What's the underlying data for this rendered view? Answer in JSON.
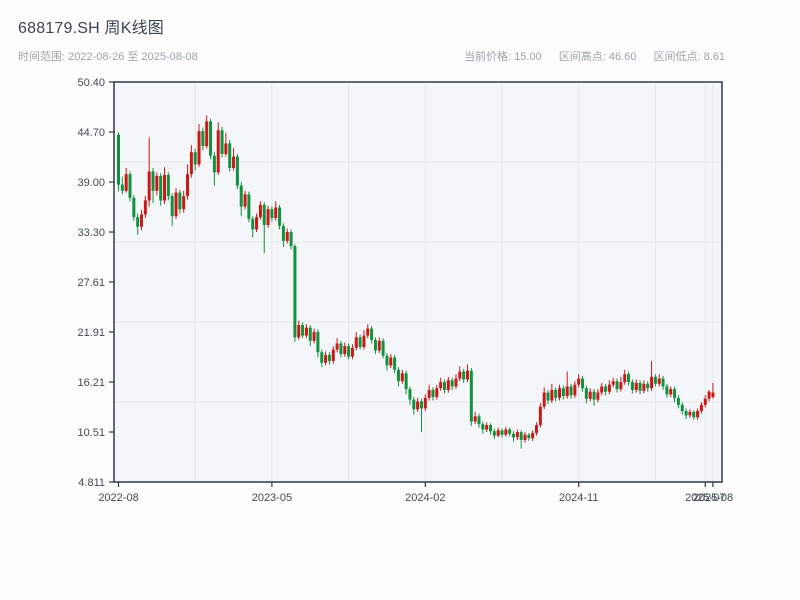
{
  "header": {
    "title": "688179.SH 周K线图",
    "subtitle": "时间范围: 2022-08-26 至 2025-08-08",
    "stats": {
      "price": "当前价格: 15.00",
      "high": "区间高点: 46.60",
      "low": "区间低点: 8.61"
    }
  },
  "chart_data": {
    "type": "candlestick",
    "symbol": "688179.SH",
    "period": "weekly",
    "title": "688179.SH 周K线图",
    "date_range": {
      "start": "2022-08-26",
      "end": "2025-08-08"
    },
    "current_price": 15.0,
    "range_high": 46.6,
    "range_low": 8.61,
    "ylim": [
      4.811,
      50.4
    ],
    "y_ticks": [
      "50.40",
      "44.70",
      "39.00",
      "33.30",
      "27.61",
      "21.91",
      "16.21",
      "10.51",
      "4.811"
    ],
    "y_tick_values": [
      50.4,
      44.7,
      39.0,
      33.3,
      27.61,
      21.91,
      16.21,
      10.51,
      4.811
    ],
    "x_ticks": [
      {
        "index": 0,
        "label": "2022-08"
      },
      {
        "index": 40,
        "label": "2023-05"
      },
      {
        "index": 80,
        "label": "2024-02"
      },
      {
        "index": 120,
        "label": "2024-11"
      },
      {
        "index": 153,
        "label": "2025-07"
      },
      {
        "index": 155,
        "label": "2025-08"
      }
    ],
    "grid": {
      "v_indices": [
        20,
        40,
        60,
        80,
        100,
        120,
        140,
        153,
        155
      ],
      "h_divisions": 5
    },
    "colors": {
      "up": "#cc1717",
      "down": "#12913e",
      "plot_bg": "#f4f6f9",
      "grid": "#e4e7ea",
      "spine": "#2b3a4a",
      "axis_text": "#3e4a5a"
    },
    "candles": [
      [
        44.4,
        44.65,
        37.9,
        38.7
      ],
      [
        38.7,
        39.6,
        37.6,
        38.0
      ],
      [
        38.0,
        40.6,
        37.8,
        39.9
      ],
      [
        39.9,
        40.2,
        36.8,
        37.2
      ],
      [
        37.2,
        37.5,
        34.6,
        35.0
      ],
      [
        35.0,
        35.4,
        33.0,
        33.9
      ],
      [
        33.9,
        35.8,
        33.5,
        35.3
      ],
      [
        35.3,
        37.4,
        34.9,
        36.9
      ],
      [
        36.9,
        44.1,
        36.2,
        40.2
      ],
      [
        40.2,
        40.6,
        36.6,
        38.0
      ],
      [
        38.0,
        40.1,
        37.5,
        39.7
      ],
      [
        39.7,
        40.0,
        36.3,
        36.9
      ],
      [
        36.9,
        40.7,
        36.5,
        39.8
      ],
      [
        39.8,
        40.1,
        36.9,
        37.4
      ],
      [
        37.4,
        37.7,
        34.0,
        35.1
      ],
      [
        35.1,
        38.3,
        34.8,
        37.8
      ],
      [
        37.8,
        38.1,
        35.4,
        35.9
      ],
      [
        35.9,
        38.0,
        35.5,
        37.4
      ],
      [
        37.4,
        41.0,
        37.0,
        39.9
      ],
      [
        39.9,
        43.2,
        39.5,
        42.4
      ],
      [
        42.4,
        42.8,
        40.3,
        41.0
      ],
      [
        41.0,
        45.6,
        40.7,
        44.8
      ],
      [
        44.8,
        45.2,
        42.6,
        43.1
      ],
      [
        43.1,
        46.6,
        42.8,
        45.9
      ],
      [
        45.9,
        46.2,
        41.6,
        42.0
      ],
      [
        42.0,
        42.4,
        38.6,
        40.1
      ],
      [
        40.1,
        45.8,
        39.8,
        44.9
      ],
      [
        44.9,
        45.3,
        41.8,
        42.2
      ],
      [
        42.2,
        44.6,
        41.9,
        43.4
      ],
      [
        43.4,
        43.8,
        40.2,
        40.6
      ],
      [
        40.6,
        42.9,
        40.3,
        41.9
      ],
      [
        41.9,
        42.2,
        38.2,
        38.6
      ],
      [
        38.6,
        39.0,
        35.1,
        36.2
      ],
      [
        36.2,
        38.0,
        35.9,
        37.6
      ],
      [
        37.6,
        37.9,
        34.4,
        34.8
      ],
      [
        34.8,
        35.1,
        32.7,
        33.6
      ],
      [
        33.6,
        35.4,
        33.3,
        35.0
      ],
      [
        35.0,
        36.8,
        34.7,
        36.4
      ],
      [
        36.4,
        36.7,
        30.9,
        34.1
      ],
      [
        34.1,
        36.3,
        33.8,
        35.9
      ],
      [
        35.9,
        36.2,
        34.5,
        34.9
      ],
      [
        34.9,
        36.8,
        34.6,
        36.1
      ],
      [
        36.1,
        36.4,
        33.6,
        34.0
      ],
      [
        34.0,
        34.3,
        31.6,
        32.3
      ],
      [
        32.3,
        33.7,
        32.0,
        33.3
      ],
      [
        33.3,
        33.6,
        31.3,
        31.7
      ],
      [
        31.7,
        31.9,
        20.8,
        21.3
      ],
      [
        21.3,
        23.2,
        21.0,
        22.7
      ],
      [
        22.7,
        23.0,
        21.2,
        21.5
      ],
      [
        21.5,
        22.8,
        21.2,
        22.4
      ],
      [
        22.4,
        22.7,
        20.3,
        20.9
      ],
      [
        20.9,
        22.3,
        20.6,
        21.9
      ],
      [
        21.9,
        22.2,
        19.0,
        19.6
      ],
      [
        19.6,
        19.9,
        17.9,
        18.4
      ],
      [
        18.4,
        19.7,
        18.1,
        19.3
      ],
      [
        19.3,
        19.6,
        18.2,
        18.6
      ],
      [
        18.6,
        20.3,
        18.3,
        19.9
      ],
      [
        19.9,
        21.2,
        19.6,
        20.6
      ],
      [
        20.6,
        20.9,
        19.0,
        19.4
      ],
      [
        19.4,
        20.7,
        19.1,
        20.3
      ],
      [
        20.3,
        20.6,
        18.8,
        19.1
      ],
      [
        19.1,
        20.5,
        18.8,
        20.1
      ],
      [
        20.1,
        21.9,
        19.8,
        21.3
      ],
      [
        21.3,
        21.6,
        19.9,
        20.2
      ],
      [
        20.2,
        22.1,
        19.9,
        21.5
      ],
      [
        21.5,
        22.8,
        21.2,
        22.3
      ],
      [
        22.3,
        22.6,
        20.6,
        21.0
      ],
      [
        21.0,
        21.3,
        19.4,
        19.8
      ],
      [
        19.8,
        21.3,
        19.5,
        20.9
      ],
      [
        20.9,
        21.2,
        18.9,
        19.2
      ],
      [
        19.2,
        19.5,
        17.5,
        18.1
      ],
      [
        18.1,
        19.4,
        17.8,
        19.0
      ],
      [
        19.0,
        19.3,
        17.2,
        17.6
      ],
      [
        17.6,
        17.9,
        15.7,
        16.3
      ],
      [
        16.3,
        17.6,
        16.0,
        17.2
      ],
      [
        17.2,
        17.5,
        14.8,
        15.4
      ],
      [
        15.4,
        15.7,
        13.6,
        14.2
      ],
      [
        14.2,
        14.5,
        12.5,
        13.1
      ],
      [
        13.1,
        14.4,
        12.8,
        14.0
      ],
      [
        14.0,
        14.3,
        10.5,
        13.2
      ],
      [
        13.2,
        14.8,
        12.9,
        14.4
      ],
      [
        14.4,
        15.9,
        14.1,
        15.3
      ],
      [
        15.3,
        15.6,
        14.1,
        14.5
      ],
      [
        14.5,
        15.9,
        14.2,
        15.5
      ],
      [
        15.5,
        16.7,
        15.2,
        16.2
      ],
      [
        16.2,
        16.5,
        14.9,
        15.3
      ],
      [
        15.3,
        16.8,
        15.0,
        16.4
      ],
      [
        16.4,
        16.7,
        15.3,
        15.7
      ],
      [
        15.7,
        17.1,
        15.4,
        16.6
      ],
      [
        16.6,
        18.0,
        16.3,
        17.4
      ],
      [
        17.4,
        17.7,
        16.1,
        16.5
      ],
      [
        16.5,
        18.2,
        16.2,
        17.5
      ],
      [
        17.5,
        17.8,
        11.2,
        11.7
      ],
      [
        11.7,
        12.8,
        11.4,
        12.3
      ],
      [
        12.3,
        12.6,
        11.0,
        11.4
      ],
      [
        11.4,
        11.7,
        10.3,
        10.8
      ],
      [
        10.8,
        11.6,
        10.5,
        11.3
      ],
      [
        11.3,
        11.5,
        10.2,
        10.6
      ],
      [
        10.6,
        10.9,
        9.7,
        10.1
      ],
      [
        10.1,
        11.0,
        9.9,
        10.7
      ],
      [
        10.7,
        10.9,
        9.9,
        10.2
      ],
      [
        10.2,
        11.1,
        10.0,
        10.8
      ],
      [
        10.8,
        11.0,
        10.0,
        10.3
      ],
      [
        10.3,
        10.6,
        9.4,
        9.9
      ],
      [
        9.9,
        10.8,
        9.6,
        10.5
      ],
      [
        10.5,
        10.7,
        8.61,
        9.6
      ],
      [
        9.6,
        10.5,
        9.3,
        10.2
      ],
      [
        10.2,
        10.4,
        9.5,
        9.8
      ],
      [
        9.8,
        10.7,
        9.5,
        10.4
      ],
      [
        10.4,
        11.6,
        10.1,
        11.3
      ],
      [
        11.3,
        13.8,
        11.0,
        13.4
      ],
      [
        13.4,
        15.6,
        13.1,
        15.0
      ],
      [
        15.0,
        15.3,
        13.7,
        14.1
      ],
      [
        14.1,
        16.0,
        13.8,
        15.3
      ],
      [
        15.3,
        15.6,
        14.0,
        14.4
      ],
      [
        14.4,
        15.9,
        14.1,
        15.5
      ],
      [
        15.5,
        15.8,
        14.2,
        14.6
      ],
      [
        14.6,
        17.4,
        14.3,
        15.7
      ],
      [
        15.7,
        16.0,
        14.3,
        14.7
      ],
      [
        14.7,
        16.3,
        14.4,
        15.9
      ],
      [
        15.9,
        17.1,
        15.6,
        16.6
      ],
      [
        16.6,
        16.9,
        15.1,
        15.5
      ],
      [
        15.5,
        15.8,
        13.8,
        14.3
      ],
      [
        14.3,
        15.5,
        14.0,
        15.1
      ],
      [
        15.1,
        15.4,
        13.5,
        14.2
      ],
      [
        14.2,
        15.4,
        13.9,
        15.0
      ],
      [
        15.0,
        16.1,
        14.7,
        15.7
      ],
      [
        15.7,
        16.0,
        14.7,
        15.1
      ],
      [
        15.1,
        16.4,
        14.8,
        15.9
      ],
      [
        15.9,
        16.7,
        15.6,
        16.3
      ],
      [
        16.3,
        16.6,
        15.0,
        15.4
      ],
      [
        15.4,
        16.8,
        15.1,
        16.2
      ],
      [
        16.2,
        17.6,
        15.9,
        17.1
      ],
      [
        17.1,
        17.4,
        15.8,
        16.2
      ],
      [
        16.2,
        16.5,
        14.9,
        15.3
      ],
      [
        15.3,
        16.5,
        15.0,
        16.1
      ],
      [
        16.1,
        16.4,
        14.8,
        15.2
      ],
      [
        15.2,
        16.4,
        14.9,
        16.0
      ],
      [
        16.0,
        16.3,
        15.1,
        15.5
      ],
      [
        15.5,
        18.6,
        15.2,
        16.8
      ],
      [
        16.8,
        17.1,
        15.7,
        16.0
      ],
      [
        16.0,
        17.1,
        15.7,
        16.6
      ],
      [
        16.6,
        16.9,
        15.3,
        15.7
      ],
      [
        15.7,
        16.0,
        14.4,
        14.8
      ],
      [
        14.8,
        15.7,
        14.5,
        15.4
      ],
      [
        15.4,
        15.7,
        13.9,
        14.4
      ],
      [
        14.4,
        14.7,
        13.2,
        13.6
      ],
      [
        13.6,
        13.9,
        12.5,
        12.9
      ],
      [
        12.9,
        13.2,
        12.0,
        12.4
      ],
      [
        12.4,
        13.1,
        12.1,
        12.8
      ],
      [
        12.8,
        13.0,
        11.9,
        12.2
      ],
      [
        12.2,
        13.2,
        11.9,
        12.9
      ],
      [
        12.9,
        13.9,
        12.6,
        13.6
      ],
      [
        13.6,
        14.7,
        13.3,
        14.3
      ],
      [
        14.3,
        15.3,
        14.0,
        15.1
      ],
      [
        14.5,
        16.1,
        14.3,
        15.0
      ]
    ]
  }
}
